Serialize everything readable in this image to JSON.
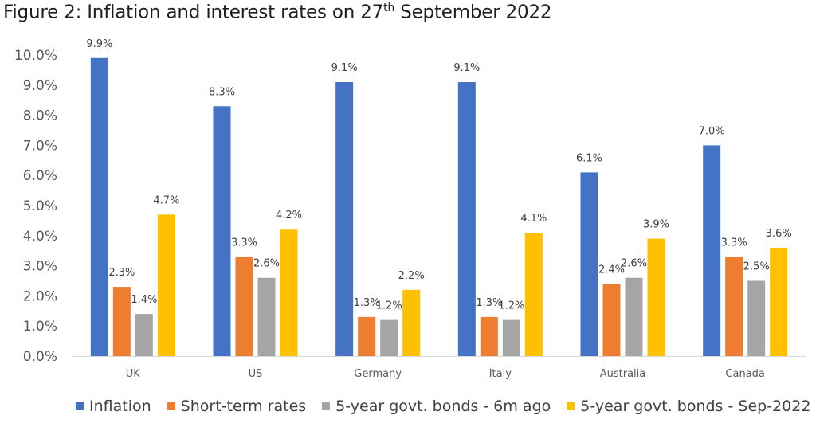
{
  "title_main": "Figure 2: Inflation and interest rates on 27",
  "title_sup": "th",
  "title_end": " September 2022",
  "chart_data": {
    "type": "bar",
    "title": "Figure 2: Inflation and interest rates on 27th September 2022",
    "categories": [
      "UK",
      "US",
      "Germany",
      "Italy",
      "Australia",
      "Canada"
    ],
    "ylim": [
      0,
      10
    ],
    "yticks": [
      "0.0%",
      "1.0%",
      "2.0%",
      "3.0%",
      "4.0%",
      "5.0%",
      "6.0%",
      "7.0%",
      "8.0%",
      "9.0%",
      "10.0%"
    ],
    "grid": false,
    "legend_position": "bottom",
    "series": [
      {
        "name": "Inflation",
        "color": "#4472C4",
        "values": [
          9.9,
          8.3,
          9.1,
          9.1,
          6.1,
          7.0
        ],
        "labels": [
          "9.9%",
          "8.3%",
          "9.1%",
          "9.1%",
          "6.1%",
          "7.0%"
        ]
      },
      {
        "name": "Short-term rates",
        "color": "#ED7D31",
        "values": [
          2.3,
          3.3,
          1.3,
          1.3,
          2.4,
          3.3
        ],
        "labels": [
          "2.3%",
          "3.3%",
          "1.3%",
          "1.3%",
          "2.4%",
          "3.3%"
        ]
      },
      {
        "name": "5-year govt. bonds - 6m ago",
        "color": "#A5A5A5",
        "values": [
          1.4,
          2.6,
          1.2,
          1.2,
          2.6,
          2.5
        ],
        "labels": [
          "1.4%",
          "2.6%",
          "1.2%",
          "1.2%",
          "2.6%",
          "2.5%"
        ]
      },
      {
        "name": "5-year govt. bonds - Sep-2022",
        "color": "#FFC000",
        "values": [
          4.7,
          4.2,
          2.2,
          4.1,
          3.9,
          3.6
        ],
        "labels": [
          "4.7%",
          "4.2%",
          "2.2%",
          "4.1%",
          "3.9%",
          "3.6%"
        ]
      }
    ]
  }
}
